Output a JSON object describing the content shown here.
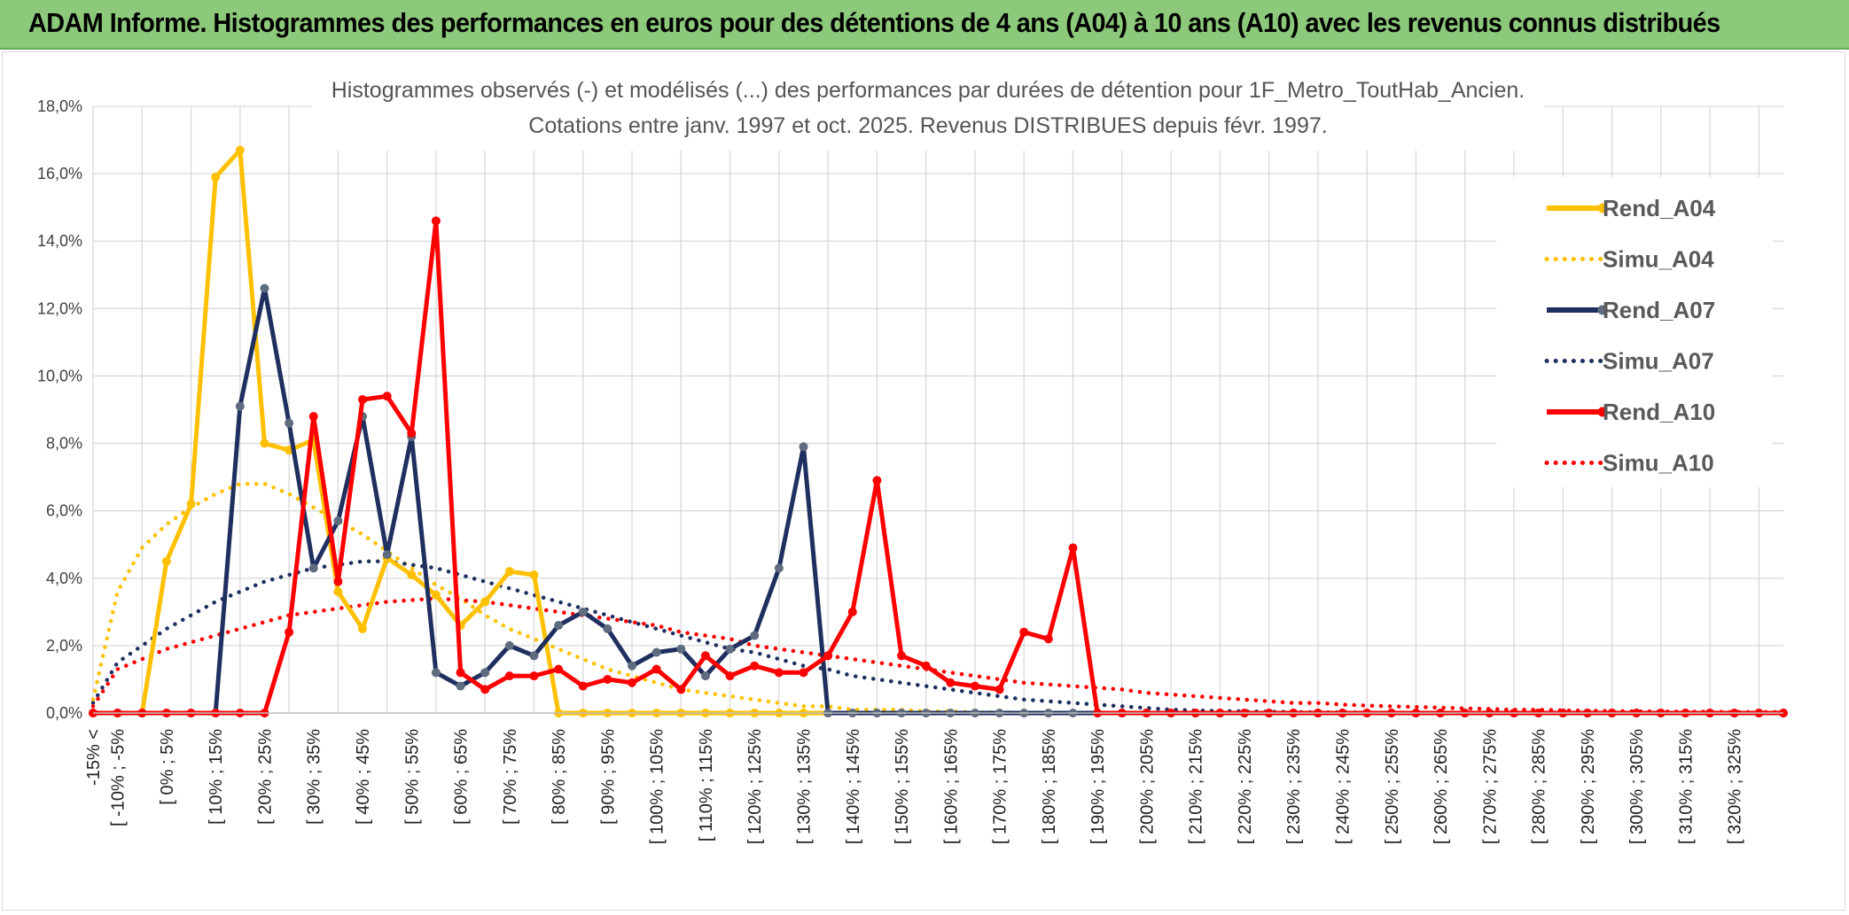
{
  "header": {
    "title": "ADAM Informe. Histogrammes des performances en euros pour des détentions de 4 ans (A04) à 10 ans (A10) avec les revenus connus distribués"
  },
  "chart_data": {
    "type": "line",
    "title": "Histogrammes observés (-) et modélisés (...) des performances par durées de détention pour 1F_Metro_ToutHab_Ancien.",
    "subtitle": "Cotations entre janv. 1997 et oct. 2025. Revenus DISTRIBUES depuis févr. 1997.",
    "ylim": [
      0,
      18
    ],
    "yticks": [
      "0,0%",
      "2,0%",
      "4,0%",
      "6,0%",
      "8,0%",
      "10,0%",
      "12,0%",
      "14,0%",
      "16,0%",
      "18,0%"
    ],
    "xlabels": [
      "-15% <",
      "[ -10% ; -5%",
      "[ 0% ; 5%",
      "[ 10% ; 15%",
      "[ 20% ; 25%",
      "[ 30% ; 35%",
      "[ 40% ; 45%",
      "[ 50% ; 55%",
      "[ 60% ; 65%",
      "[ 70% ; 75%",
      "[ 80% ; 85%",
      "[ 90% ; 95%",
      "[ 100% ; 105%",
      "[ 110% ; 115%",
      "[ 120% ; 125%",
      "[ 130% ; 135%",
      "[ 140% ; 145%",
      "[ 150% ; 155%",
      "[ 160% ; 165%",
      "[ 170% ; 175%",
      "[ 180% ; 185%",
      "[ 190% ; 195%",
      "[ 200% ; 205%",
      "[ 210% ; 215%",
      "[ 220% ; 225%",
      "[ 230% ; 235%",
      "[ 240% ; 245%",
      "[ 250% ; 255%",
      "[ 260% ; 265%",
      "[ 270% ; 275%",
      "[ 280% ; 285%",
      "[ 290% ; 295%",
      "[ 300% ; 305%",
      "[ 310% ; 315%",
      "[ 320% ; 325%"
    ],
    "grid": true,
    "legend_position": "right",
    "series": [
      {
        "name": "Rend_A04",
        "style": "solid",
        "color": "#ffc000",
        "values": [
          0,
          0,
          0,
          4.5,
          6.2,
          15.9,
          16.7,
          8.0,
          7.8,
          8.1,
          3.6,
          2.5,
          4.6,
          4.1,
          3.5,
          2.6,
          3.3,
          4.2,
          4.1,
          0,
          0,
          0,
          0,
          0,
          0,
          0,
          0,
          0,
          0,
          0,
          0,
          0,
          0
        ]
      },
      {
        "name": "Simu_A04",
        "style": "dotted",
        "color": "#ffc000",
        "values": [
          0.4,
          3.6,
          4.9,
          5.6,
          6.1,
          6.5,
          6.8,
          6.8,
          6.5,
          6.1,
          5.7,
          5.3,
          4.8,
          4.3,
          3.8,
          3.4,
          2.9,
          2.5,
          2.2,
          1.9,
          1.6,
          1.3,
          1.1,
          0.9,
          0.7,
          0.6,
          0.5,
          0.4,
          0.3,
          0.2,
          0.2,
          0.1,
          0.1,
          0.1,
          0.05,
          0.05,
          0.02,
          0.02,
          0.01,
          0.01,
          0,
          0,
          0,
          0,
          0,
          0,
          0,
          0,
          0,
          0,
          0,
          0,
          0,
          0,
          0,
          0,
          0,
          0,
          0,
          0,
          0,
          0,
          0,
          0,
          0,
          0,
          0,
          0,
          0,
          0
        ]
      },
      {
        "name": "Rend_A07",
        "style": "solid",
        "color": "#1f2f5f",
        "values": [
          0,
          0,
          0,
          0,
          0,
          0,
          9.1,
          12.6,
          8.6,
          4.3,
          5.7,
          8.8,
          4.7,
          8.2,
          1.2,
          0.8,
          1.2,
          2.0,
          1.7,
          2.6,
          3.0,
          2.5,
          1.4,
          1.8,
          1.9,
          1.1,
          1.9,
          2.3,
          4.3,
          7.9,
          0,
          0,
          0,
          0,
          0,
          0,
          0,
          0,
          0,
          0,
          0,
          0,
          0,
          0,
          0,
          0,
          0,
          0,
          0,
          0,
          0,
          0,
          0,
          0,
          0,
          0,
          0,
          0,
          0,
          0,
          0,
          0,
          0,
          0,
          0,
          0,
          0,
          0,
          0,
          0
        ]
      },
      {
        "name": "Simu_A07",
        "style": "dotted",
        "color": "#1f2f5f",
        "values": [
          0.3,
          1.5,
          2.0,
          2.5,
          2.9,
          3.3,
          3.6,
          3.9,
          4.1,
          4.3,
          4.4,
          4.5,
          4.5,
          4.4,
          4.3,
          4.1,
          3.9,
          3.7,
          3.5,
          3.3,
          3.1,
          2.9,
          2.7,
          2.5,
          2.3,
          2.1,
          1.9,
          1.8,
          1.6,
          1.4,
          1.3,
          1.1,
          1.0,
          0.9,
          0.8,
          0.7,
          0.6,
          0.5,
          0.4,
          0.35,
          0.3,
          0.25,
          0.2,
          0.15,
          0.1,
          0.08,
          0.06,
          0.05,
          0.04,
          0.03,
          0.02,
          0.02,
          0.01,
          0.01,
          0,
          0,
          0,
          0,
          0,
          0,
          0,
          0,
          0,
          0,
          0,
          0,
          0,
          0,
          0,
          0
        ]
      },
      {
        "name": "Rend_A10",
        "style": "solid",
        "color": "#ff0000",
        "values": [
          0,
          0,
          0,
          0,
          0,
          0,
          0,
          0,
          2.4,
          8.8,
          3.9,
          9.3,
          9.4,
          8.3,
          14.6,
          1.2,
          0.7,
          1.1,
          1.1,
          1.3,
          0.8,
          1.0,
          0.9,
          1.3,
          0.7,
          1.7,
          1.1,
          1.4,
          1.2,
          1.2,
          1.7,
          3.0,
          6.9,
          1.7,
          1.4,
          0.9,
          0.8,
          0.7,
          2.4,
          2.2,
          4.9,
          0,
          0,
          0,
          0,
          0,
          0,
          0,
          0,
          0,
          0,
          0,
          0,
          0,
          0,
          0,
          0,
          0,
          0,
          0,
          0,
          0,
          0,
          0,
          0,
          0,
          0,
          0,
          0,
          0
        ]
      },
      {
        "name": "Simu_A10",
        "style": "dotted",
        "color": "#ff0000",
        "values": [
          0.2,
          1.3,
          1.6,
          1.9,
          2.1,
          2.3,
          2.5,
          2.7,
          2.9,
          3.0,
          3.1,
          3.2,
          3.3,
          3.35,
          3.4,
          3.35,
          3.3,
          3.2,
          3.1,
          3.0,
          2.9,
          2.8,
          2.7,
          2.6,
          2.4,
          2.3,
          2.2,
          2.0,
          1.9,
          1.8,
          1.7,
          1.6,
          1.5,
          1.4,
          1.3,
          1.2,
          1.1,
          1.0,
          0.9,
          0.85,
          0.8,
          0.75,
          0.7,
          0.6,
          0.55,
          0.5,
          0.45,
          0.4,
          0.35,
          0.3,
          0.3,
          0.25,
          0.22,
          0.2,
          0.18,
          0.16,
          0.14,
          0.12,
          0.1,
          0.1,
          0.08,
          0.07,
          0.06,
          0.05,
          0.05,
          0.04,
          0.04,
          0.03,
          0.03,
          0.03
        ]
      }
    ]
  }
}
